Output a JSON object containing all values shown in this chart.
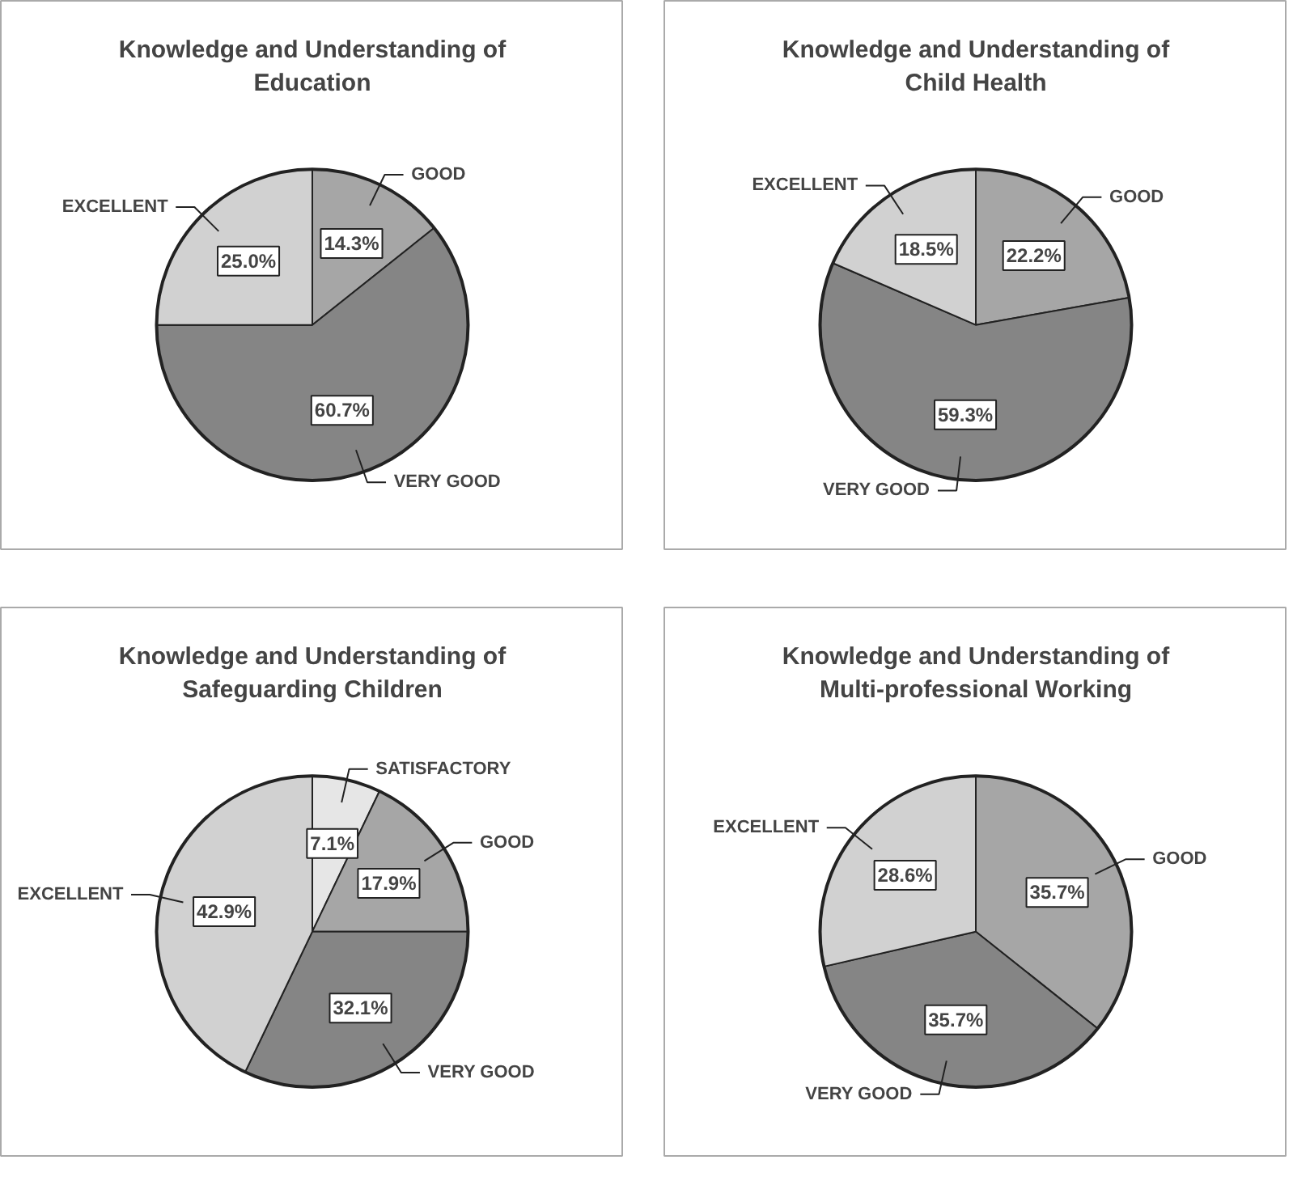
{
  "chart_data": [
    {
      "type": "pie",
      "title": "Knowledge and Understanding of\nEducation",
      "categories": [
        "GOOD",
        "VERY GOOD",
        "EXCELLENT"
      ],
      "values": [
        14.3,
        60.7,
        25.0
      ],
      "value_labels": [
        "14.3%",
        "60.7%",
        "25.0%"
      ],
      "colors": [
        "#a6a6a6",
        "#858585",
        "#d1d1d1"
      ]
    },
    {
      "type": "pie",
      "title": "Knowledge and Understanding of\nChild Health",
      "categories": [
        "GOOD",
        "VERY GOOD",
        "EXCELLENT"
      ],
      "values": [
        22.2,
        59.3,
        18.5
      ],
      "value_labels": [
        "22.2%",
        "59.3%",
        "18.5%"
      ],
      "colors": [
        "#a6a6a6",
        "#858585",
        "#d1d1d1"
      ]
    },
    {
      "type": "pie",
      "title": "Knowledge and Understanding of\nSafeguarding Children",
      "categories": [
        "SATISFACTORY",
        "GOOD",
        "VERY GOOD",
        "EXCELLENT"
      ],
      "values": [
        7.1,
        17.9,
        32.1,
        42.9
      ],
      "value_labels": [
        "7.1%",
        "17.9%",
        "32.1%",
        "42.9%"
      ],
      "colors": [
        "#e6e6e6",
        "#a6a6a6",
        "#858585",
        "#d1d1d1"
      ]
    },
    {
      "type": "pie",
      "title": "Knowledge and Understanding of\nMulti-professional Working",
      "categories": [
        "GOOD",
        "VERY GOOD",
        "EXCELLENT"
      ],
      "values": [
        35.7,
        35.7,
        28.6
      ],
      "value_labels": [
        "35.7%",
        "35.7%",
        "28.6%"
      ],
      "colors": [
        "#a6a6a6",
        "#858585",
        "#d1d1d1"
      ]
    }
  ]
}
